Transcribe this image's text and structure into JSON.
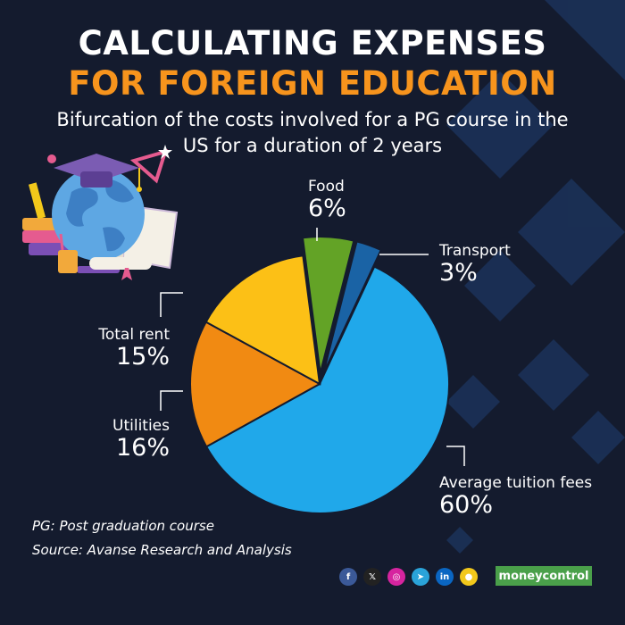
{
  "title_line1": "CALCULATING EXPENSES",
  "title_line2": "FOR FOREIGN EDUCATION",
  "subtitle": "Bifurcation of the costs involved for a PG course in the US for a duration of 2 years",
  "footnote": "PG: Post graduation course",
  "source": "Source: Avanse Research and Analysis",
  "brand": "moneycontrol",
  "socials": [
    {
      "icon": "facebook-icon",
      "glyph": "f",
      "color": "#3b5998"
    },
    {
      "icon": "x-icon",
      "glyph": "𝕏",
      "color": "#222222"
    },
    {
      "icon": "instagram-icon",
      "glyph": "◎",
      "color": "#d6249f"
    },
    {
      "icon": "telegram-icon",
      "glyph": "➤",
      "color": "#2aa3d9"
    },
    {
      "icon": "linkedin-icon",
      "glyph": "in",
      "color": "#0a66c2"
    },
    {
      "icon": "koo-icon",
      "glyph": "●",
      "color": "#f2c81b"
    }
  ],
  "colors": {
    "background": "#141b2e",
    "title_accent": "#f7941d"
  },
  "chart_data": {
    "type": "pie",
    "title": "",
    "slices": [
      {
        "label": "Average tuition fees",
        "value": 60,
        "display": "60%",
        "color": "#20a8ea",
        "exploded": false
      },
      {
        "label": "Utilities",
        "value": 16,
        "display": "16%",
        "color": "#f18a12",
        "exploded": false
      },
      {
        "label": "Total rent",
        "value": 15,
        "display": "15%",
        "color": "#fcc016",
        "exploded": false
      },
      {
        "label": "Food",
        "value": 6,
        "display": "6%",
        "color": "#63a326",
        "exploded": true
      },
      {
        "label": "Transport",
        "value": 3,
        "display": "3%",
        "color": "#1a63a5",
        "exploded": true
      }
    ]
  }
}
